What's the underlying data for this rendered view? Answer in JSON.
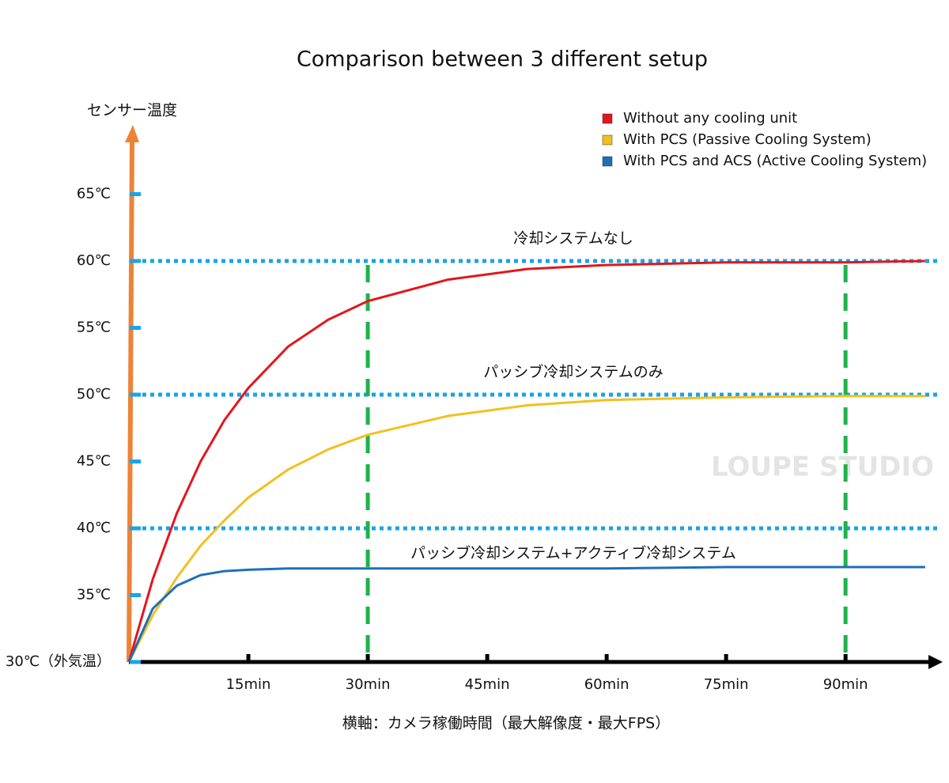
{
  "chart_data": {
    "type": "line",
    "title": "Comparison between 3 different setup",
    "y_label": "センサー温度",
    "x_label": "横軸：カメラ稼働時間（最大解像度・最大FPS）",
    "x": [
      0,
      3,
      6,
      9,
      12,
      15,
      20,
      25,
      30,
      40,
      50,
      60,
      75,
      90,
      100
    ],
    "series": [
      {
        "name": "Without any cooling unit",
        "color": "#e3161b",
        "values": [
          30,
          36.2,
          41.1,
          45.0,
          48.1,
          50.5,
          53.6,
          55.6,
          57.0,
          58.6,
          59.4,
          59.7,
          59.9,
          59.9,
          60.0
        ]
      },
      {
        "name": "With PCS (Passive Cooling System)",
        "color": "#f2c01e",
        "values": [
          30,
          33.5,
          36.3,
          38.7,
          40.6,
          42.3,
          44.4,
          45.9,
          47.0,
          48.4,
          49.2,
          49.6,
          49.8,
          49.9,
          49.9
        ]
      },
      {
        "name": "With PCS and ACS (Active Cooling System)",
        "color": "#1f6fb8",
        "values": [
          30,
          34.0,
          35.7,
          36.5,
          36.8,
          36.9,
          37.0,
          37.0,
          37.0,
          37.0,
          37.0,
          37.0,
          37.1,
          37.1,
          37.1
        ]
      }
    ],
    "xlim": [
      0,
      102
    ],
    "ylim": [
      30,
      70
    ],
    "xticks": [
      {
        "value": 15,
        "label": "15min"
      },
      {
        "value": 30,
        "label": "30min"
      },
      {
        "value": 45,
        "label": "45min"
      },
      {
        "value": 60,
        "label": "60min"
      },
      {
        "value": 75,
        "label": "75min"
      },
      {
        "value": 90,
        "label": "90min"
      }
    ],
    "yticks": [
      {
        "value": 30,
        "label": "30℃（外気温）"
      },
      {
        "value": 35,
        "label": "35℃"
      },
      {
        "value": 40,
        "label": "40℃"
      },
      {
        "value": 45,
        "label": "45℃"
      },
      {
        "value": 50,
        "label": "50℃"
      },
      {
        "value": 55,
        "label": "55℃"
      },
      {
        "value": 60,
        "label": "60℃"
      },
      {
        "value": 65,
        "label": "65℃"
      }
    ],
    "reference_lines": [
      {
        "value": 60,
        "label": "冷却システムなし"
      },
      {
        "value": 50,
        "label": "パッシブ冷却システムのみ"
      },
      {
        "value": 40
      }
    ],
    "vertical_lines": [
      30,
      90
    ],
    "annotation": "パッシブ冷却システム+アクティブ冷却システム",
    "watermark": "LOUPE STUDIO"
  }
}
